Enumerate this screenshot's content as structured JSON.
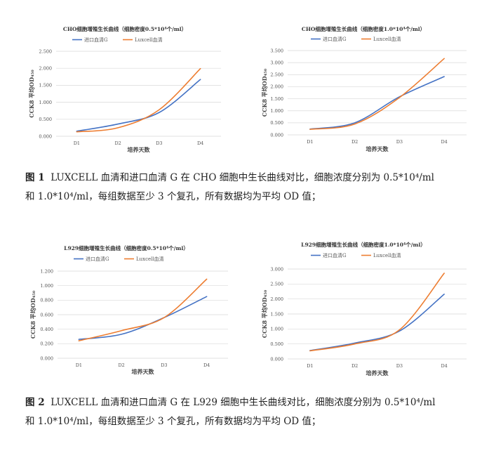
{
  "colors": {
    "series_a": "#4472c4",
    "series_b": "#ed7d31",
    "grid": "#d9d9d9"
  },
  "chart_data": [
    {
      "type": "line",
      "title": "CHO细胞增殖生长曲线（细胞密度0.5*10⁴个/ml）",
      "xlabel": "培养天数",
      "ylabel": "CCK8 平均OD₄₅₀",
      "categories": [
        "D1",
        "D2",
        "D3",
        "D4"
      ],
      "ylim": [
        0,
        2.5
      ],
      "yticks": [
        "0.000",
        "0.500",
        "1.000",
        "1.500",
        "2.000",
        "2.500"
      ],
      "series": [
        {
          "name": "进口血清G",
          "values": [
            0.15,
            0.36,
            0.7,
            1.67
          ]
        },
        {
          "name": "Luxcell血清",
          "values": [
            0.13,
            0.25,
            0.78,
            1.99
          ]
        }
      ],
      "grid": true,
      "legend": "top"
    },
    {
      "type": "line",
      "title": "CHO细胞增殖生长曲线（细胞密度1.0*10⁴个/ml）",
      "xlabel": "培养天数",
      "ylabel": "CCK8 平均OD₄₅₀",
      "categories": [
        "D1",
        "D2",
        "D3",
        "D4"
      ],
      "ylim": [
        0,
        3.5
      ],
      "yticks": [
        "0.000",
        "0.500",
        "1.000",
        "1.500",
        "2.000",
        "2.500",
        "3.000",
        "3.500"
      ],
      "series": [
        {
          "name": "进口血清G",
          "values": [
            0.24,
            0.5,
            1.58,
            2.42
          ]
        },
        {
          "name": "Luxcell血清",
          "values": [
            0.23,
            0.45,
            1.55,
            3.17
          ]
        }
      ],
      "grid": true,
      "legend": "top"
    },
    {
      "type": "line",
      "title": "L929细胞增殖生长曲线（细胞密度0.5*10⁴个/ml）",
      "xlabel": "培养天数",
      "ylabel": "CCK8 平均OD₄₅₀",
      "categories": [
        "D1",
        "D2",
        "D3",
        "D4"
      ],
      "ylim": [
        0,
        1.2
      ],
      "yticks": [
        "0.000",
        "0.200",
        "0.400",
        "0.600",
        "0.800",
        "1.000",
        "1.200"
      ],
      "series": [
        {
          "name": "进口血清G",
          "values": [
            0.26,
            0.33,
            0.56,
            0.85
          ]
        },
        {
          "name": "Luxcell血清",
          "values": [
            0.24,
            0.38,
            0.56,
            1.09
          ]
        }
      ],
      "grid": true,
      "legend": "top"
    },
    {
      "type": "line",
      "title": "L929细胞增殖生长曲线（细胞密度1.0*10⁴个/ml）",
      "xlabel": "培养天数",
      "ylabel": "CCK8 平均OD₄₅₀",
      "categories": [
        "D1",
        "D2",
        "D3",
        "D4"
      ],
      "ylim": [
        0,
        3.0
      ],
      "yticks": [
        "0.000",
        "0.500",
        "1.000",
        "1.500",
        "2.000",
        "2.500",
        "3.000"
      ],
      "series": [
        {
          "name": "进口血清G",
          "values": [
            0.28,
            0.53,
            0.93,
            2.16
          ]
        },
        {
          "name": "Luxcell血清",
          "values": [
            0.27,
            0.5,
            0.97,
            2.86
          ]
        }
      ],
      "grid": true,
      "legend": "top"
    }
  ],
  "captions": [
    {
      "label": "图 1",
      "line1": "LUXCELL 血清和进口血清 G 在 CHO 细胞中生长曲线对比，细胞浓度分别为 0.5*10⁴/ml",
      "line2": "和 1.0*10⁴/ml，每组数据至少 3 个复孔，所有数据均为平均 OD 值；"
    },
    {
      "label": "图 2",
      "line1": "LUXCELL 血清和进口血清 G 在 L929 细胞中生长曲线对比，细胞浓度分别为 0.5*10⁴/ml",
      "line2": "和 1.0*10⁴/ml，每组数据至少 3 个复孔，所有数据均为平均 OD 值；"
    }
  ]
}
